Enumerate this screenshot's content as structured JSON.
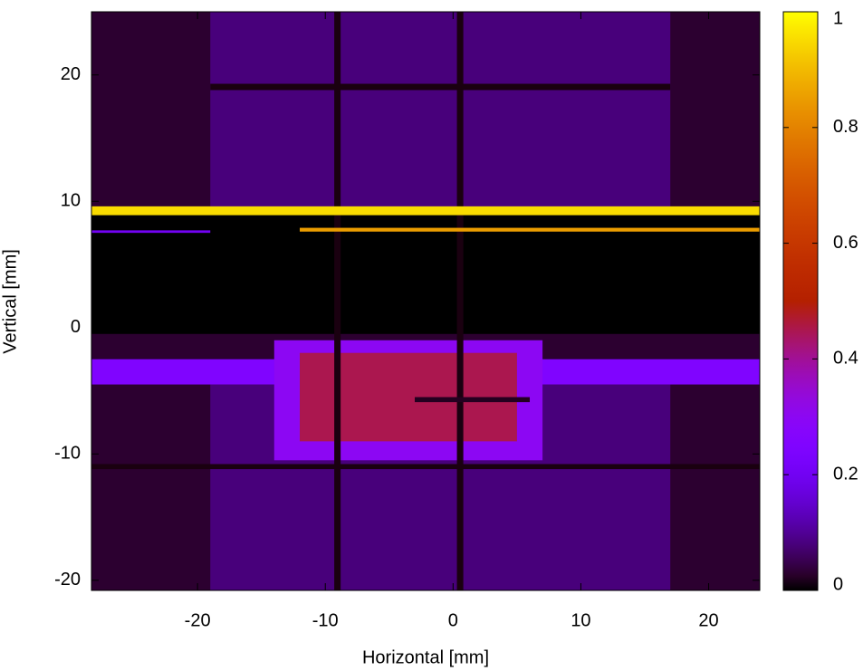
{
  "chart_data": {
    "type": "heatmap",
    "x_label": "Horizontal [mm]",
    "y_label": "Vertical [mm]",
    "xlim": [
      -28.3,
      24
    ],
    "ylim": [
      -20.8,
      25
    ],
    "xticks": [
      -20,
      -10,
      0,
      10,
      20
    ],
    "yticks": [
      -20,
      -10,
      0,
      10,
      20
    ],
    "clim": [
      0,
      1
    ],
    "cticks": [
      0,
      0.2,
      0.4,
      0.6,
      0.8,
      1
    ],
    "colormap": "gnuplot",
    "regions": [
      {
        "x": [
          -28.3,
          24
        ],
        "y": [
          -20.8,
          25
        ],
        "value": 0.03
      },
      {
        "x": [
          -19,
          17
        ],
        "y": [
          9.5,
          25
        ],
        "value": 0.08
      },
      {
        "x": [
          -19,
          17
        ],
        "y": [
          -20.8,
          -4.5
        ],
        "value": 0.08
      },
      {
        "x": [
          -28.3,
          24
        ],
        "y": [
          -0.5,
          9
        ],
        "value": 0
      },
      {
        "x": [
          -28.3,
          24
        ],
        "y": [
          -4.5,
          -2.5
        ],
        "value": 0.25
      },
      {
        "x": [
          -14,
          7
        ],
        "y": [
          -10.5,
          -1
        ],
        "value": 0.3
      },
      {
        "x": [
          -12,
          5
        ],
        "y": [
          -9,
          -2
        ],
        "value": 0.45
      },
      {
        "x": [
          -19,
          17
        ],
        "y": [
          18.8,
          19.3
        ],
        "value": 0.01
      },
      {
        "x": [
          -28.3,
          24
        ],
        "y": [
          -11.2,
          -10.8
        ],
        "value": 0.01
      },
      {
        "x": [
          -9.3,
          -8.8
        ],
        "y": [
          -20.8,
          25
        ],
        "value": 0.01
      },
      {
        "x": [
          0.3,
          0.8
        ],
        "y": [
          -20.8,
          25
        ],
        "value": 0.01
      },
      {
        "x": [
          -3,
          6
        ],
        "y": [
          -5.9,
          -5.5
        ],
        "value": 0.02
      },
      {
        "x": [
          -28.3,
          24
        ],
        "y": [
          8.9,
          9.6
        ],
        "value": 0.95
      },
      {
        "x": [
          -12,
          24
        ],
        "y": [
          7.6,
          7.9
        ],
        "value": 0.85
      },
      {
        "x": [
          -28.3,
          -19
        ],
        "y": [
          7.5,
          7.7
        ],
        "value": 0.2
      }
    ]
  }
}
